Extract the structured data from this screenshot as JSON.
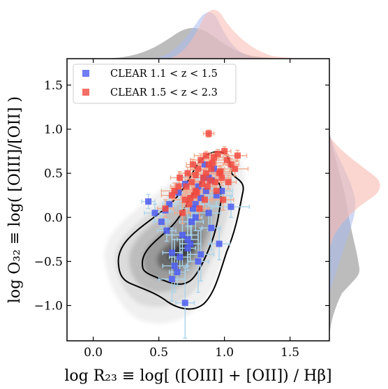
{
  "chart_data": {
    "type": "scatter",
    "title": "",
    "xlabel": "log R₂₃ ≡ log[ ([OIII] + [OII]) / Hβ]",
    "ylabel": "log O₃₂ ≡ log( [OIII]/[OII] )",
    "xlim": [
      -0.2,
      1.8
    ],
    "ylim": [
      -1.4,
      1.8
    ],
    "xticks": [
      0.0,
      0.5,
      1.0,
      1.5
    ],
    "yticks": [
      -1.0,
      -0.5,
      0.0,
      0.5,
      1.0,
      1.5
    ],
    "xtick_labels": [
      "0.0",
      "0.5",
      "1.0",
      "1.5"
    ],
    "ytick_labels": [
      "−1.0",
      "−0.5",
      "0.0",
      "0.5",
      "1.0",
      "1.5"
    ],
    "legend_position": "top-left",
    "grid": false,
    "background_density": "grey filled kernel-density contours of a comparison sample with two black contour lines",
    "marginal_distributions": "top and right kernel densities for the grey sample and both CLEAR samples",
    "colors": {
      "blue_series": "#4d5cf0",
      "red_series": "#f24a40",
      "low_z_errorbar": "#a9d4ec",
      "high_z_errorbar": "#f2a98c",
      "grey_density": "#7a7a7a",
      "blue_density": "#a9bbee",
      "red_density": "#f9bab0"
    },
    "series": [
      {
        "name": "CLEAR 1.1 < z < 1.5",
        "color": "#4d5cf0",
        "x": [
          0.42,
          0.47,
          0.52,
          0.56,
          0.6,
          0.62,
          0.64,
          0.66,
          0.68,
          0.7,
          0.72,
          0.74,
          0.76,
          0.78,
          0.8,
          0.8,
          0.82,
          0.84,
          0.86,
          0.88,
          0.9,
          0.92,
          0.94,
          0.96,
          0.7,
          0.65,
          0.58,
          0.72,
          0.78,
          0.85,
          0.9,
          0.55,
          0.6,
          0.75,
          0.82,
          0.88,
          0.98,
          1.05
        ],
        "y": [
          0.18,
          0.05,
          -0.05,
          -0.15,
          -0.7,
          -0.55,
          -0.62,
          -0.45,
          -0.2,
          -0.97,
          -0.35,
          -0.3,
          0.1,
          0.0,
          0.35,
          -0.5,
          0.22,
          0.45,
          0.3,
          0.05,
          -0.12,
          0.55,
          0.25,
          -0.3,
          0.38,
          0.28,
          0.15,
          -0.25,
          0.15,
          0.6,
          0.42,
          0.08,
          -0.4,
          -0.05,
          -0.42,
          0.45,
          0.3,
          0.12
        ],
        "xerr": [
          0.05,
          0.08,
          0.06,
          0.07,
          0.1,
          0.09,
          0.06,
          0.08,
          0.12,
          0.07,
          0.06,
          0.08,
          0.1,
          0.05,
          0.07,
          0.08,
          0.06,
          0.05,
          0.1,
          0.09,
          0.07,
          0.06,
          0.12,
          0.08,
          0.06,
          0.07,
          0.05,
          0.08,
          0.06,
          0.07,
          0.05,
          0.06,
          0.07,
          0.09,
          0.1,
          0.05,
          0.08,
          0.14
        ],
        "yerr": [
          0.08,
          0.1,
          0.07,
          0.12,
          0.25,
          0.3,
          0.15,
          0.2,
          0.35,
          0.4,
          0.25,
          0.2,
          0.12,
          0.15,
          0.1,
          0.35,
          0.12,
          0.08,
          0.15,
          0.2,
          0.25,
          0.06,
          0.12,
          0.18,
          0.08,
          0.1,
          0.09,
          0.3,
          0.1,
          0.07,
          0.09,
          0.1,
          0.28,
          0.2,
          0.3,
          0.08,
          0.1,
          0.12
        ]
      },
      {
        "name": "CLEAR 1.5 < z < 2.3",
        "color": "#f24a40",
        "x": [
          0.88,
          0.55,
          0.6,
          0.65,
          0.7,
          0.72,
          0.75,
          0.78,
          0.8,
          0.82,
          0.84,
          0.85,
          0.86,
          0.88,
          0.9,
          0.92,
          0.93,
          0.95,
          0.96,
          0.98,
          1.0,
          1.02,
          1.05,
          1.08,
          1.1,
          0.68,
          0.73,
          0.77,
          0.81,
          0.87,
          0.91,
          0.94,
          0.97,
          0.99,
          1.03,
          0.62,
          0.66,
          0.71,
          0.76,
          0.79,
          0.83,
          0.86,
          0.89,
          0.74,
          0.78
        ],
        "y": [
          0.95,
          0.1,
          0.25,
          0.35,
          0.2,
          0.5,
          0.4,
          0.3,
          0.55,
          0.65,
          0.45,
          0.2,
          0.7,
          0.6,
          0.55,
          0.68,
          0.4,
          0.72,
          0.5,
          0.45,
          0.75,
          0.65,
          0.6,
          0.55,
          0.7,
          0.05,
          0.15,
          0.25,
          0.1,
          0.35,
          0.62,
          0.3,
          0.52,
          0.2,
          0.4,
          0.3,
          0.45,
          0.35,
          0.6,
          0.28,
          0.38,
          0.5,
          0.42,
          0.22,
          0.48
        ],
        "xerr": [
          0.04,
          0.06,
          0.08,
          0.06,
          0.1,
          0.07,
          0.05,
          0.09,
          0.06,
          0.08,
          0.07,
          0.05,
          0.09,
          0.06,
          0.1,
          0.07,
          0.08,
          0.06,
          0.09,
          0.07,
          0.05,
          0.08,
          0.06,
          0.1,
          0.07,
          0.06,
          0.05,
          0.08,
          0.07,
          0.06,
          0.09,
          0.05,
          0.07,
          0.08,
          0.06,
          0.1,
          0.07,
          0.06,
          0.05,
          0.08,
          0.07,
          0.06,
          0.05,
          0.07,
          0.06
        ],
        "yerr": [
          0.04,
          0.1,
          0.08,
          0.09,
          0.12,
          0.07,
          0.1,
          0.08,
          0.06,
          0.07,
          0.09,
          0.12,
          0.05,
          0.07,
          0.06,
          0.05,
          0.1,
          0.05,
          0.08,
          0.09,
          0.05,
          0.06,
          0.07,
          0.08,
          0.06,
          0.12,
          0.1,
          0.09,
          0.11,
          0.08,
          0.06,
          0.1,
          0.07,
          0.12,
          0.08,
          0.09,
          0.07,
          0.08,
          0.06,
          0.1,
          0.08,
          0.06,
          0.07,
          0.1,
          0.07
        ]
      }
    ]
  }
}
